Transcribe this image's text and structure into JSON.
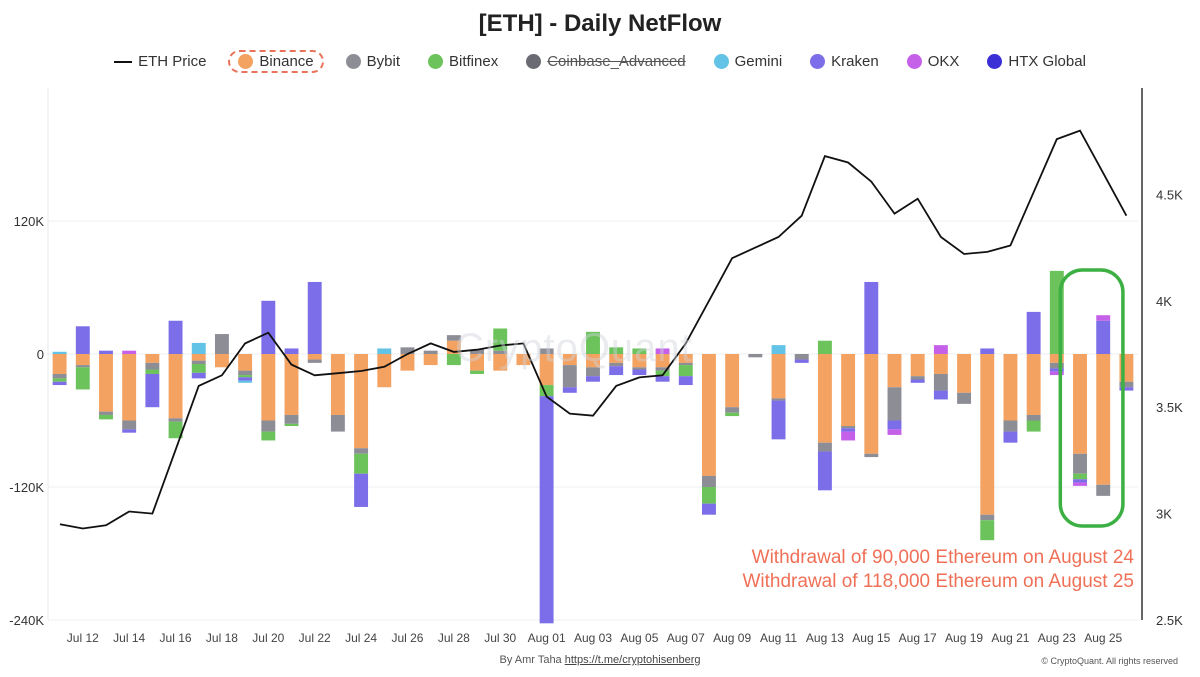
{
  "title": "[ETH] - Daily NetFlow",
  "legend": [
    {
      "name": "ETH Price",
      "type": "line",
      "color": "#111111",
      "state": "normal"
    },
    {
      "name": "Binance",
      "type": "dot",
      "color": "#f4a261",
      "state": "selected"
    },
    {
      "name": "Bybit",
      "type": "dot",
      "color": "#8d8d96",
      "state": "normal"
    },
    {
      "name": "Bitfinex",
      "type": "dot",
      "color": "#6cc35c",
      "state": "normal"
    },
    {
      "name": "Coinbase_Advanced",
      "type": "dot",
      "color": "#6b6b73",
      "state": "disabled"
    },
    {
      "name": "Gemini",
      "type": "dot",
      "color": "#62c3e6",
      "state": "normal"
    },
    {
      "name": "Kraken",
      "type": "dot",
      "color": "#7b6ee8",
      "state": "normal"
    },
    {
      "name": "OKX",
      "type": "dot",
      "color": "#c561e8",
      "state": "normal"
    },
    {
      "name": "HTX Global",
      "type": "dot",
      "color": "#3b2fd6",
      "state": "normal"
    }
  ],
  "annotation": {
    "line1": "Withdrawal of 90,000 Ethereum on August 24",
    "line2": "Withdrawal of 118,000 Ethereum on August 25",
    "color": "#f07057",
    "highlight_color": "#3cb043"
  },
  "watermark": "CryptoQuant",
  "footer": {
    "by": "By Amr Taha",
    "link": "https://t.me/cryptohisenberg",
    "copyright": "© CryptoQuant. All rights reserved"
  },
  "chart_data": {
    "type": "bar",
    "stacked": true,
    "title": "[ETH] - Daily NetFlow",
    "ylim_left": [
      -240000,
      240000
    ],
    "ylim_right": [
      2500,
      5000
    ],
    "left_ticks": [
      {
        "v": 120000,
        "label": "120K"
      },
      {
        "v": 0,
        "label": "0"
      },
      {
        "v": -120000,
        "label": "-120K"
      },
      {
        "v": -240000,
        "label": "-240K"
      }
    ],
    "right_ticks": [
      {
        "v": 4500,
        "label": "4.5K"
      },
      {
        "v": 4000,
        "label": "4K"
      },
      {
        "v": 3500,
        "label": "3.5K"
      },
      {
        "v": 3000,
        "label": "3K"
      },
      {
        "v": 2500,
        "label": "2.5K"
      }
    ],
    "x_tick_labels": [
      {
        "i": 1,
        "label": "Jul 12"
      },
      {
        "i": 3,
        "label": "Jul 14"
      },
      {
        "i": 5,
        "label": "Jul 16"
      },
      {
        "i": 7,
        "label": "Jul 18"
      },
      {
        "i": 9,
        "label": "Jul 20"
      },
      {
        "i": 11,
        "label": "Jul 22"
      },
      {
        "i": 13,
        "label": "Jul 24"
      },
      {
        "i": 15,
        "label": "Jul 26"
      },
      {
        "i": 17,
        "label": "Jul 28"
      },
      {
        "i": 19,
        "label": "Jul 30"
      },
      {
        "i": 21,
        "label": "Aug 01"
      },
      {
        "i": 23,
        "label": "Aug 03"
      },
      {
        "i": 25,
        "label": "Aug 05"
      },
      {
        "i": 27,
        "label": "Aug 07"
      },
      {
        "i": 29,
        "label": "Aug 09"
      },
      {
        "i": 31,
        "label": "Aug 11"
      },
      {
        "i": 33,
        "label": "Aug 13"
      },
      {
        "i": 35,
        "label": "Aug 15"
      },
      {
        "i": 37,
        "label": "Aug 17"
      },
      {
        "i": 39,
        "label": "Aug 19"
      },
      {
        "i": 41,
        "label": "Aug 21"
      },
      {
        "i": 43,
        "label": "Aug 23"
      },
      {
        "i": 45,
        "label": "Aug 25"
      }
    ],
    "dates": [
      "Jul 11",
      "Jul 12",
      "Jul 13",
      "Jul 14",
      "Jul 15",
      "Jul 16",
      "Jul 17",
      "Jul 18",
      "Jul 19",
      "Jul 20",
      "Jul 21",
      "Jul 22",
      "Jul 23",
      "Jul 24",
      "Jul 25",
      "Jul 26",
      "Jul 27",
      "Jul 28",
      "Jul 29",
      "Jul 30",
      "Jul 31",
      "Aug 01",
      "Aug 02",
      "Aug 03",
      "Aug 04",
      "Aug 05",
      "Aug 06",
      "Aug 07",
      "Aug 08",
      "Aug 09",
      "Aug 10",
      "Aug 11",
      "Aug 12",
      "Aug 13",
      "Aug 14",
      "Aug 15",
      "Aug 16",
      "Aug 17",
      "Aug 18",
      "Aug 19",
      "Aug 20",
      "Aug 21",
      "Aug 22",
      "Aug 23",
      "Aug 24",
      "Aug 25",
      "Aug 26"
    ],
    "eth_price": [
      2950,
      2930,
      2945,
      3010,
      3000,
      3300,
      3600,
      3650,
      3800,
      3850,
      3700,
      3650,
      3660,
      3670,
      3690,
      3750,
      3800,
      3760,
      3770,
      3790,
      3800,
      3550,
      3470,
      3460,
      3600,
      3640,
      3650,
      3800,
      4000,
      4200,
      4250,
      4300,
      4400,
      4680,
      4650,
      4560,
      4410,
      4480,
      4300,
      4220,
      4230,
      4260,
      4510,
      4760,
      4800,
      4600,
      4400
    ],
    "series": [
      {
        "name": "Binance",
        "color": "#f4a261",
        "values": [
          -18000,
          -10000,
          -52000,
          -60000,
          -8000,
          -58000,
          -6000,
          -12000,
          -15000,
          -60000,
          -55000,
          -5000,
          -55000,
          -85000,
          -30000,
          -15000,
          -10000,
          12000,
          -15000,
          -15000,
          -10000,
          -28000,
          -10000,
          -12000,
          -8000,
          -12000,
          -12000,
          -8000,
          -110000,
          -48000,
          0,
          -40000,
          0,
          -80000,
          -65000,
          -90000,
          -30000,
          -20000,
          -18000,
          -35000,
          -145000,
          -60000,
          -55000,
          -8000,
          -90000,
          -118000,
          -25000
        ]
      },
      {
        "name": "Bybit",
        "color": "#8d8d96",
        "values": [
          -4000,
          -2000,
          -3000,
          -8000,
          -6000,
          -3000,
          -3000,
          18000,
          -4000,
          -10000,
          -8000,
          -3000,
          -15000,
          -5000,
          0,
          6000,
          3000,
          5000,
          4000,
          3000,
          0,
          5000,
          -20000,
          -8000,
          -3000,
          -2000,
          -3000,
          -2000,
          -10000,
          -5000,
          -3000,
          -2000,
          -5000,
          -8000,
          -2000,
          -3000,
          -30000,
          -3000,
          -15000,
          -10000,
          -5000,
          -10000,
          -5000,
          -5000,
          -18000,
          -10000,
          -5000
        ]
      },
      {
        "name": "Bitfinex",
        "color": "#6cc35c",
        "values": [
          -3000,
          -20000,
          -4000,
          0,
          -4000,
          -15000,
          -8000,
          0,
          -2000,
          -8000,
          -2000,
          0,
          0,
          -18000,
          0,
          0,
          0,
          -10000,
          -3000,
          20000,
          0,
          -10000,
          0,
          20000,
          6000,
          5000,
          -5000,
          -10000,
          -15000,
          -3000,
          0,
          0,
          0,
          12000,
          0,
          0,
          0,
          0,
          0,
          0,
          -18000,
          0,
          -10000,
          75000,
          -5000,
          0,
          0
        ]
      },
      {
        "name": "Kraken",
        "color": "#7b6ee8",
        "values": [
          -3000,
          25000,
          3000,
          -3000,
          -30000,
          30000,
          -5000,
          0,
          -3000,
          48000,
          5000,
          65000,
          0,
          -30000,
          0,
          0,
          0,
          0,
          0,
          0,
          0,
          -205000,
          -5000,
          -5000,
          -8000,
          -5000,
          -5000,
          -8000,
          -10000,
          0,
          0,
          -35000,
          -3000,
          -35000,
          -3000,
          65000,
          -8000,
          -3000,
          -8000,
          0,
          5000,
          -10000,
          38000,
          -3000,
          -3000,
          30000,
          -3000
        ]
      },
      {
        "name": "OKX",
        "color": "#c561e8",
        "values": [
          0,
          0,
          0,
          3000,
          0,
          0,
          0,
          0,
          0,
          0,
          0,
          0,
          0,
          0,
          0,
          0,
          0,
          0,
          0,
          0,
          0,
          0,
          0,
          0,
          0,
          0,
          5000,
          0,
          0,
          0,
          0,
          0,
          0,
          0,
          -8000,
          0,
          -5000,
          0,
          8000,
          0,
          0,
          0,
          0,
          -3000,
          -3000,
          5000,
          0
        ]
      },
      {
        "name": "Gemini",
        "color": "#62c3e6",
        "values": [
          2000,
          0,
          0,
          0,
          0,
          0,
          10000,
          0,
          -2000,
          0,
          0,
          0,
          0,
          0,
          5000,
          0,
          0,
          0,
          0,
          0,
          0,
          0,
          0,
          0,
          0,
          0,
          0,
          0,
          0,
          0,
          0,
          8000,
          0,
          0,
          0,
          0,
          0,
          0,
          0,
          0,
          0,
          0,
          0,
          0,
          0,
          0,
          0
        ]
      },
      {
        "name": "HTX Global",
        "color": "#3b2fd6",
        "values": [
          0,
          0,
          0,
          0,
          0,
          0,
          0,
          0,
          0,
          0,
          0,
          0,
          0,
          0,
          0,
          0,
          0,
          0,
          0,
          0,
          0,
          0,
          0,
          0,
          0,
          0,
          0,
          0,
          0,
          0,
          0,
          0,
          0,
          0,
          0,
          0,
          0,
          0,
          0,
          0,
          0,
          0,
          0,
          0,
          0,
          0,
          0
        ]
      }
    ]
  }
}
